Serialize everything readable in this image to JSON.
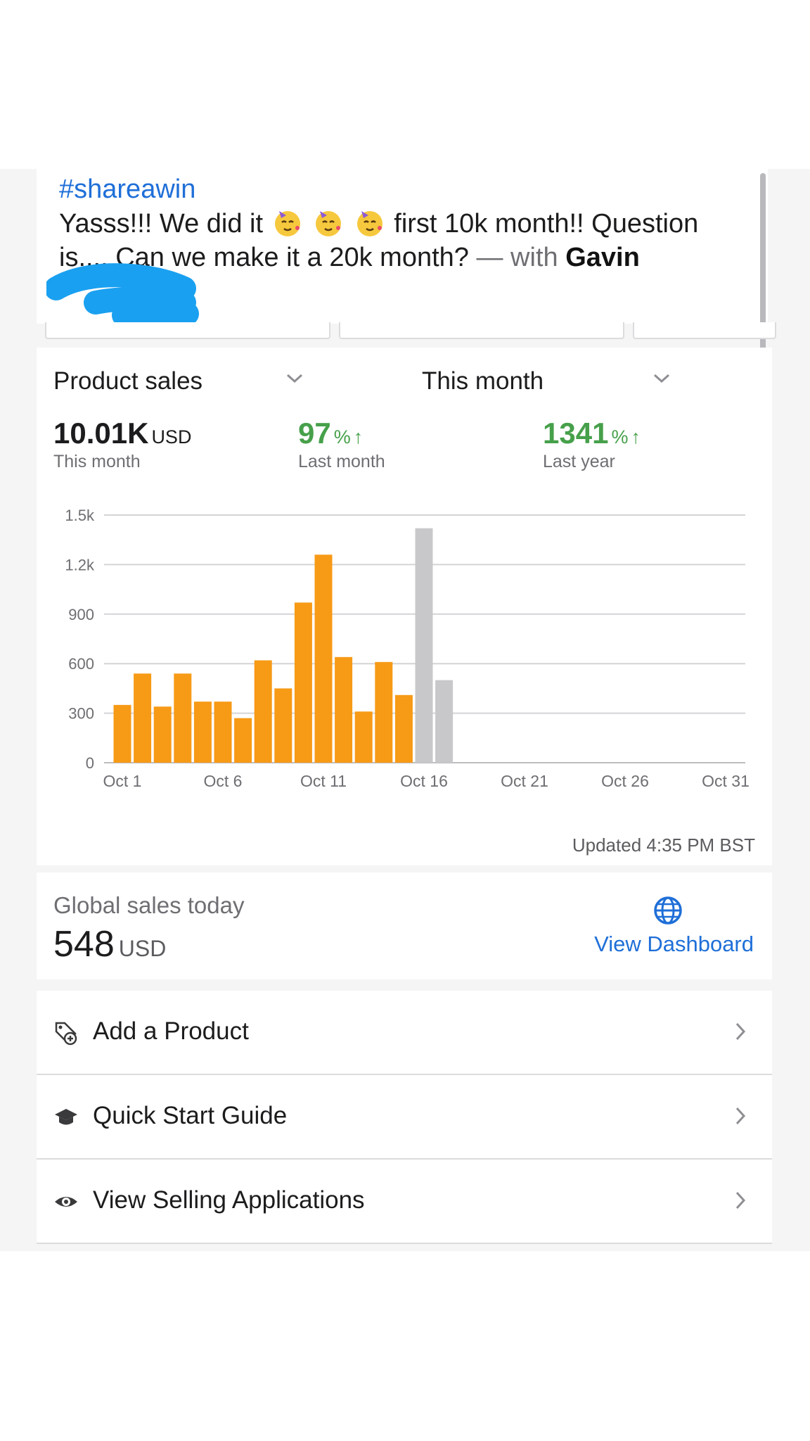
{
  "post": {
    "hashtag": "#shareawin",
    "line1_before": "Yasss!!! We did it",
    "line1_after": "first 10k month!! Question",
    "line2": "is.... Can we make it a 20k month?",
    "with_text": "— with",
    "tagged_name": "Gavin",
    "emoji_icon": "partying-face-icon"
  },
  "sales": {
    "metric_selector": "Product sales",
    "period_selector": "This month",
    "stats": [
      {
        "value": "10.01K",
        "unit": "USD",
        "label": "This month",
        "arrow": ""
      },
      {
        "value": "97",
        "unit": "%",
        "label": "Last month",
        "arrow": "↑"
      },
      {
        "value": "1341",
        "unit": "%",
        "label": "Last year",
        "arrow": "↑"
      }
    ],
    "updated": "Updated 4:35 PM BST",
    "colors": {
      "bar": "#f79a16",
      "projected": "#c8c8cb",
      "growth": "#46a04a"
    }
  },
  "chart_data": {
    "type": "bar",
    "yticks": [
      "0",
      "300",
      "600",
      "900",
      "1.2k",
      "1.5k"
    ],
    "ylim": [
      0,
      1500
    ],
    "xtick_labels": [
      "Oct 1",
      "Oct 6",
      "Oct 11",
      "Oct 16",
      "Oct 21",
      "Oct 26",
      "Oct 31"
    ],
    "x": [
      1,
      2,
      3,
      4,
      5,
      6,
      7,
      8,
      9,
      10,
      11,
      12,
      13,
      14,
      15,
      16,
      17
    ],
    "values": [
      350,
      540,
      340,
      540,
      370,
      370,
      270,
      620,
      450,
      970,
      1260,
      640,
      310,
      610,
      410,
      1420,
      500
    ],
    "bar_colors": [
      "#f79a16",
      "#f79a16",
      "#f79a16",
      "#f79a16",
      "#f79a16",
      "#f79a16",
      "#f79a16",
      "#f79a16",
      "#f79a16",
      "#f79a16",
      "#f79a16",
      "#f79a16",
      "#f79a16",
      "#f79a16",
      "#f79a16",
      "#c8c8cb",
      "#c8c8cb"
    ],
    "xrange": [
      1,
      31
    ],
    "grid": true
  },
  "global": {
    "title": "Global sales today",
    "value": "548",
    "unit": "USD",
    "link": "View Dashboard"
  },
  "menu": [
    {
      "label": "Add a Product",
      "icon": "add-product-tag-icon"
    },
    {
      "label": "Quick Start Guide",
      "icon": "graduation-cap-icon"
    },
    {
      "label": "View Selling Applications",
      "icon": "eye-icon"
    }
  ]
}
